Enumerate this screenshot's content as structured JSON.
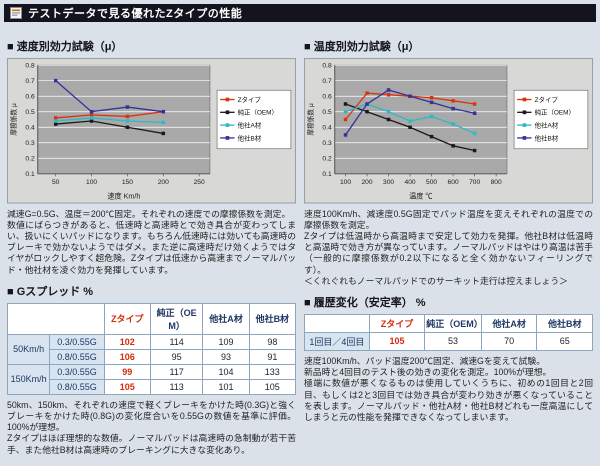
{
  "title_bar": {
    "icon": "document-icon",
    "title": "テストデータで見る優れたZタイプの性能"
  },
  "sections": {
    "speed_test": {
      "heading": "■ 速度別効力試験（μ）",
      "description": "減速G=0.5G、温度＝200℃固定。それぞれの速度での摩擦係数を測定。\n数値にばらつきがあると、低速時と高速時とで効き具合が変わってしまい、扱いにくいパッドになります。もちろん低速時には効いても高速時のブレーキで効かないようではダメ。また逆に高速時だけ効くようではタイヤがロックしやすく超危険。Zタイプは低速から高速までノーマルパッド・他社材を凌ぐ効力を発揮しています。"
    },
    "temp_test": {
      "heading": "■ 温度別効力試験（μ）",
      "description": "速度100Km/h、減速度0.5G固定でパッド温度を変えそれぞれの温度での摩擦係数を測定。\nZタイプは低温時から高温時まで安定して効力を発揮。他社B材は低温時と高温時で効き方が異なっています。ノーマルパッドはやはり高温は苦手（一般的に摩擦係数が0.2以下になると全く効かないフィーリングです）。\n＜くれぐれもノーマルパッドでのサーキット走行は控えましょう＞"
    },
    "g_spread": {
      "heading": "■ Gスプレッド %",
      "description": "50km、150km、それぞれの速度で軽くブレーキをかけた時(0.3G)と強くブレーキをかけた時(0.8G)の変化度合いを0.55Gの数値を基準に評価。100%が理想。\nZタイプはほぼ理想的な数値。ノーマルパッドは高速時の急制動が若干苦手、また他社B材は高速時のブレーキングに大きな変化あり。"
    },
    "history": {
      "heading": "■ 履歴変化（安定率） %",
      "description": "速度100Km/h、パッド温度200℃固定、減速Gを変えて試験。\n新品時と4回目のテスト後の効きの変化を測定。100%が理想。\n極端に数値が悪くなるものは使用していくうちに、初めの1回目と2回目、もしくは2と3回目では効き具合が変わり効きが悪くなっていることを表します。ノーマルパッド・他社A材・他社B材どれも一度高温にしてしまうと元の性能を発揮できなくなってしまいます。"
    }
  },
  "tables": {
    "gspread": {
      "headers": [
        "Zタイプ",
        "純正（OEM）",
        "他社A材",
        "他社B材"
      ],
      "groups": [
        {
          "label": "50Km/h",
          "rows": [
            {
              "condition": "0.3/0.55G",
              "values": [
                "102",
                "114",
                "109",
                "98"
              ]
            },
            {
              "condition": "0.8/0.55G",
              "values": [
                "106",
                "95",
                "93",
                "91"
              ]
            }
          ]
        },
        {
          "label": "150Km/h",
          "rows": [
            {
              "condition": "0.3/0.55G",
              "values": [
                "99",
                "117",
                "104",
                "133"
              ]
            },
            {
              "condition": "0.8/0.55G",
              "values": [
                "105",
                "113",
                "101",
                "105"
              ]
            }
          ]
        }
      ]
    },
    "history": {
      "headers": [
        "Zタイプ",
        "純正（OEM）",
        "他社A材",
        "他社B材"
      ],
      "row_label": "1回目／4回目",
      "values": [
        "105",
        "53",
        "70",
        "65"
      ]
    }
  },
  "chart_data": [
    {
      "type": "line",
      "title": "速度別効力試験",
      "xlabel": "速度 Km/h",
      "ylabel": "摩擦係数 μ",
      "x": [
        50,
        100,
        150,
        200
      ],
      "xticks": [
        50,
        100,
        150,
        200,
        250
      ],
      "xlim": [
        25,
        265
      ],
      "ylim": [
        0.1,
        0.8
      ],
      "yticks": [
        0.1,
        0.2,
        0.3,
        0.4,
        0.5,
        0.6,
        0.7,
        0.8
      ],
      "grid": true,
      "legend_position": "right",
      "series": [
        {
          "name": "Zタイプ",
          "color": "#d93411",
          "values": [
            0.46,
            0.48,
            0.47,
            0.5
          ]
        },
        {
          "name": "純正（OEM）",
          "color": "#1a1a1a",
          "values": [
            0.42,
            0.44,
            0.4,
            0.36
          ]
        },
        {
          "name": "他社A材",
          "color": "#2fb8c9",
          "values": [
            0.44,
            0.46,
            0.44,
            0.43
          ]
        },
        {
          "name": "他社B材",
          "color": "#333399",
          "values": [
            0.7,
            0.5,
            0.53,
            0.5
          ]
        }
      ]
    },
    {
      "type": "line",
      "title": "温度別効力試験",
      "xlabel": "温度 ℃",
      "ylabel": "摩擦係数 μ",
      "x": [
        100,
        200,
        300,
        400,
        500,
        600,
        700
      ],
      "xticks": [
        100,
        200,
        300,
        400,
        500,
        600,
        700,
        800
      ],
      "xlim": [
        50,
        850
      ],
      "ylim": [
        0.1,
        0.8
      ],
      "yticks": [
        0.1,
        0.2,
        0.3,
        0.4,
        0.5,
        0.6,
        0.7,
        0.8
      ],
      "grid": true,
      "legend_position": "right",
      "series": [
        {
          "name": "Zタイプ",
          "color": "#d93411",
          "values": [
            0.45,
            0.62,
            0.61,
            0.6,
            0.59,
            0.57,
            0.55
          ]
        },
        {
          "name": "純正（OEM）",
          "color": "#1a1a1a",
          "values": [
            0.55,
            0.5,
            0.45,
            0.4,
            0.34,
            0.28,
            0.25
          ]
        },
        {
          "name": "他社A材",
          "color": "#2fb8c9",
          "values": [
            0.5,
            0.55,
            0.5,
            0.44,
            0.47,
            0.42,
            0.36
          ]
        },
        {
          "name": "他社B材",
          "color": "#333399",
          "values": [
            0.35,
            0.55,
            0.64,
            0.6,
            0.56,
            0.52,
            0.49
          ]
        }
      ]
    }
  ],
  "colors": {
    "z_red": "#d42b0c",
    "table_border": "#8ca6c0",
    "label_cell_bg": "#d9e4f1",
    "page_bg": "#dae1e8",
    "title_bar_bg": "#14141f",
    "chart_plot_bg": "#a9a9a9"
  }
}
